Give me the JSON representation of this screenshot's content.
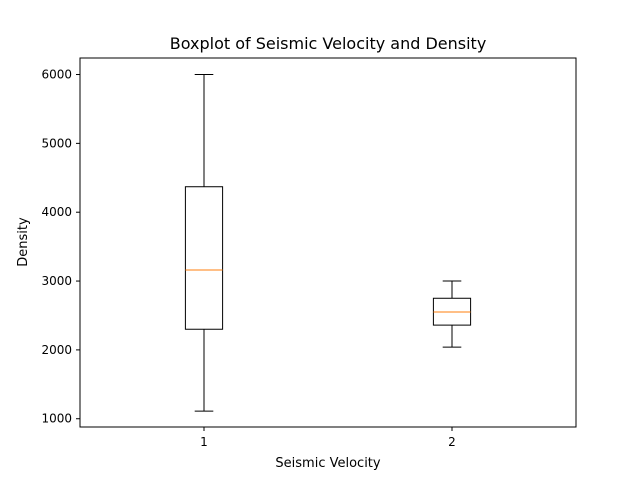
{
  "chart_data": {
    "type": "boxplot",
    "title": "Boxplot of Seismic Velocity and Density",
    "xlabel": "Seismic Velocity",
    "ylabel": "Density",
    "ylim": [
      880,
      6240
    ],
    "xlim": [
      0.5,
      2.5
    ],
    "yticks": [
      1000,
      2000,
      3000,
      4000,
      5000,
      6000
    ],
    "grid": false,
    "boxes": [
      {
        "label": "1",
        "position": 1,
        "whisker_low": 1110,
        "q1": 2300,
        "median": 3160,
        "q3": 4370,
        "whisker_high": 6000
      },
      {
        "label": "2",
        "position": 2,
        "whisker_low": 2040,
        "q1": 2360,
        "median": 2550,
        "q3": 2750,
        "whisker_high": 3000
      }
    ],
    "colors": {
      "box": "#000000",
      "median": "#ff7f0e"
    }
  }
}
